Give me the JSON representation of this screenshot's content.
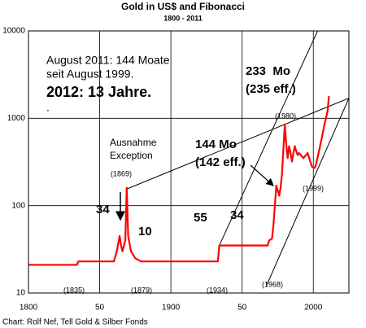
{
  "chart_data": {
    "type": "line",
    "title": "Gold in US$ and Fibonacci",
    "subtitle": "1800 - 2011",
    "source": "Chart: Rolf Nef, Tell Gold & Silber Fonds",
    "log_y": true,
    "grid": true,
    "xlim": [
      1800,
      2025
    ],
    "ylim": [
      10,
      10000
    ],
    "xticks": [
      1800,
      {
        "value": 1850,
        "label": "50"
      },
      1900,
      {
        "value": 1950,
        "label": "50"
      },
      2000
    ],
    "yticks": [
      10,
      100,
      1000,
      10000
    ],
    "series": [
      {
        "name": "Gold",
        "color": "#ff0000",
        "x": [
          1800,
          1834,
          1835,
          1860,
          1862,
          1864,
          1865,
          1866,
          1868,
          1869,
          1870,
          1872,
          1875,
          1879,
          1933,
          1934,
          1968,
          1969,
          1971,
          1972,
          1973,
          1974,
          1975,
          1976,
          1977,
          1978,
          1979,
          1980,
          1981,
          1982,
          1983,
          1984,
          1985,
          1986,
          1987,
          1988,
          1989,
          1990,
          1993,
          1996,
          1999,
          2001,
          2002,
          2004,
          2006,
          2008,
          2010,
          2011
        ],
        "values": [
          21,
          21,
          23,
          23,
          30,
          45,
          35,
          30,
          40,
          160,
          45,
          30,
          25,
          23,
          23,
          35,
          35,
          40,
          42,
          60,
          100,
          170,
          150,
          130,
          160,
          230,
          450,
          850,
          500,
          350,
          480,
          400,
          320,
          400,
          480,
          420,
          380,
          400,
          350,
          400,
          280,
          270,
          300,
          420,
          600,
          880,
          1200,
          1800
        ]
      }
    ],
    "trend_lines": [
      {
        "color": "#000000",
        "x": [
          1869,
          2025
        ],
        "y": [
          155,
          1700
        ]
      },
      {
        "color": "#000000",
        "x": [
          1934,
          2003
        ],
        "y": [
          35,
          10000
        ]
      },
      {
        "color": "#000000",
        "x": [
          1967,
          2025
        ],
        "y": [
          12,
          1700
        ]
      }
    ],
    "annotations": [
      "August 2011: 144 Moate",
      "seit August 1999.",
      "2012: 13 Jahre.",
      ".",
      "233  Mo",
      "(235 eff.)",
      "(1980)",
      "144 Mo",
      "(142 eff.)",
      "Ausnahme",
      "Exception",
      "(1869)",
      "34",
      "10",
      "55",
      "34",
      "(1999)",
      "(1835)",
      "(1879)",
      "(1934)",
      "(1968)"
    ]
  }
}
